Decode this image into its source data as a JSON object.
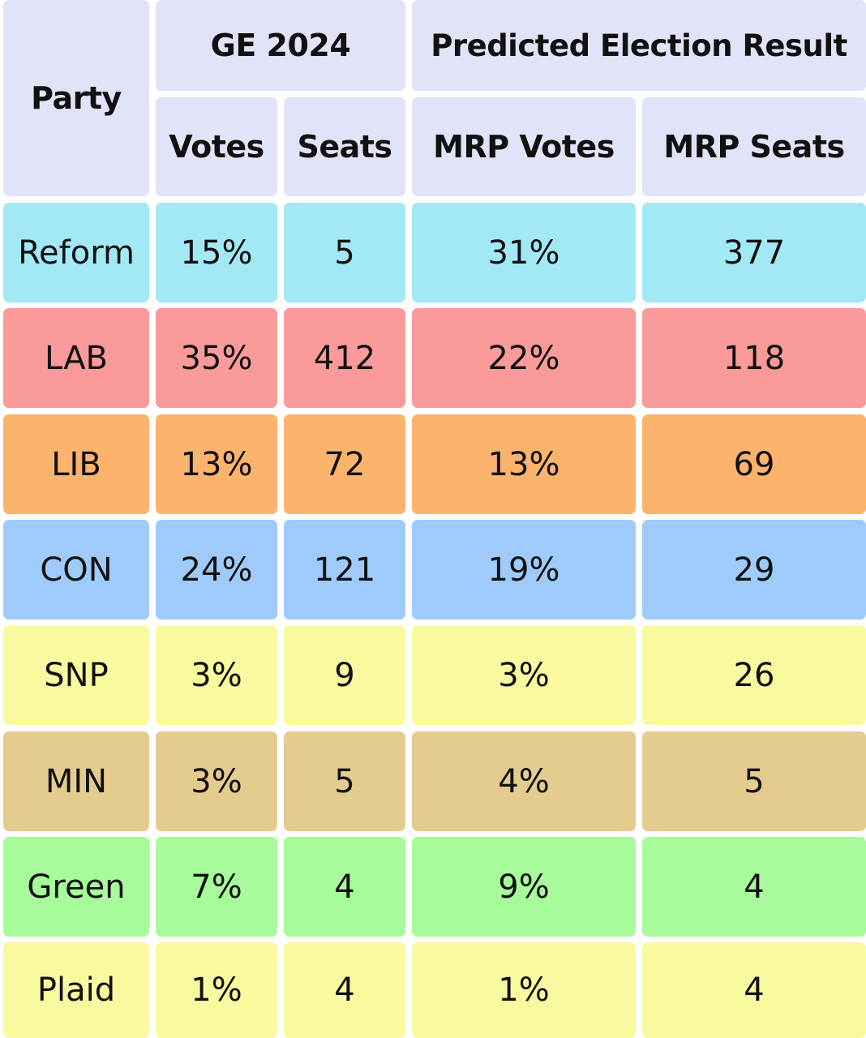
{
  "chart_data": {
    "type": "table",
    "headers": {
      "party": "Party",
      "ge_group": "GE 2024",
      "predicted_group": "Predicted Election Result",
      "columns": [
        "Votes",
        "Seats",
        "MRP Votes",
        "MRP Seats"
      ]
    },
    "rows": [
      {
        "party": "Reform",
        "votes": "15%",
        "seats": "5",
        "mrp_votes": "31%",
        "mrp_seats": "377",
        "color": "#a3e8f5"
      },
      {
        "party": "LAB",
        "votes": "35%",
        "seats": "412",
        "mrp_votes": "22%",
        "mrp_seats": "118",
        "color": "#fb9a9a"
      },
      {
        "party": "LIB",
        "votes": "13%",
        "seats": "72",
        "mrp_votes": "13%",
        "mrp_seats": "69",
        "color": "#fcb36b"
      },
      {
        "party": "CON",
        "votes": "24%",
        "seats": "121",
        "mrp_votes": "19%",
        "mrp_seats": "29",
        "color": "#9fcbfb"
      },
      {
        "party": "SNP",
        "votes": "3%",
        "seats": "9",
        "mrp_votes": "3%",
        "mrp_seats": "26",
        "color": "#f9fa9f"
      },
      {
        "party": "MIN",
        "votes": "3%",
        "seats": "5",
        "mrp_votes": "4%",
        "mrp_seats": "5",
        "color": "#e4cc8f"
      },
      {
        "party": "Green",
        "votes": "7%",
        "seats": "4",
        "mrp_votes": "9%",
        "mrp_seats": "4",
        "color": "#a7fb9a"
      },
      {
        "party": "Plaid",
        "votes": "1%",
        "seats": "4",
        "mrp_votes": "1%",
        "mrp_seats": "4",
        "color": "#f9fa9f"
      }
    ]
  }
}
